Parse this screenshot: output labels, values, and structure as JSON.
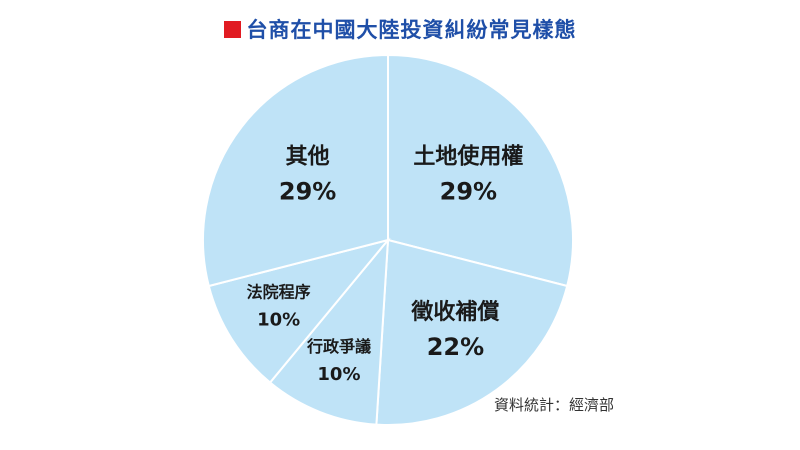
{
  "chart_data": {
    "type": "pie",
    "title": "台商在中國大陸投資糾紛常見樣態",
    "slices": [
      {
        "label": "土地使用權",
        "value": 29,
        "value_label": "29%"
      },
      {
        "label": "徵收補償",
        "value": 22,
        "value_label": "22%"
      },
      {
        "label": "行政爭議",
        "value": 10,
        "value_label": "10%"
      },
      {
        "label": "法院程序",
        "value": 10,
        "value_label": "10%"
      },
      {
        "label": "其他",
        "value": 29,
        "value_label": "29%"
      }
    ],
    "start_angle_deg": 0,
    "direction": "clockwise",
    "slice_color": "#bfe3f7",
    "border_color": "#ffffff",
    "title_color": "#1f4fa8",
    "marker_color": "#e11b22"
  },
  "source_note": "資料統計：經濟部"
}
